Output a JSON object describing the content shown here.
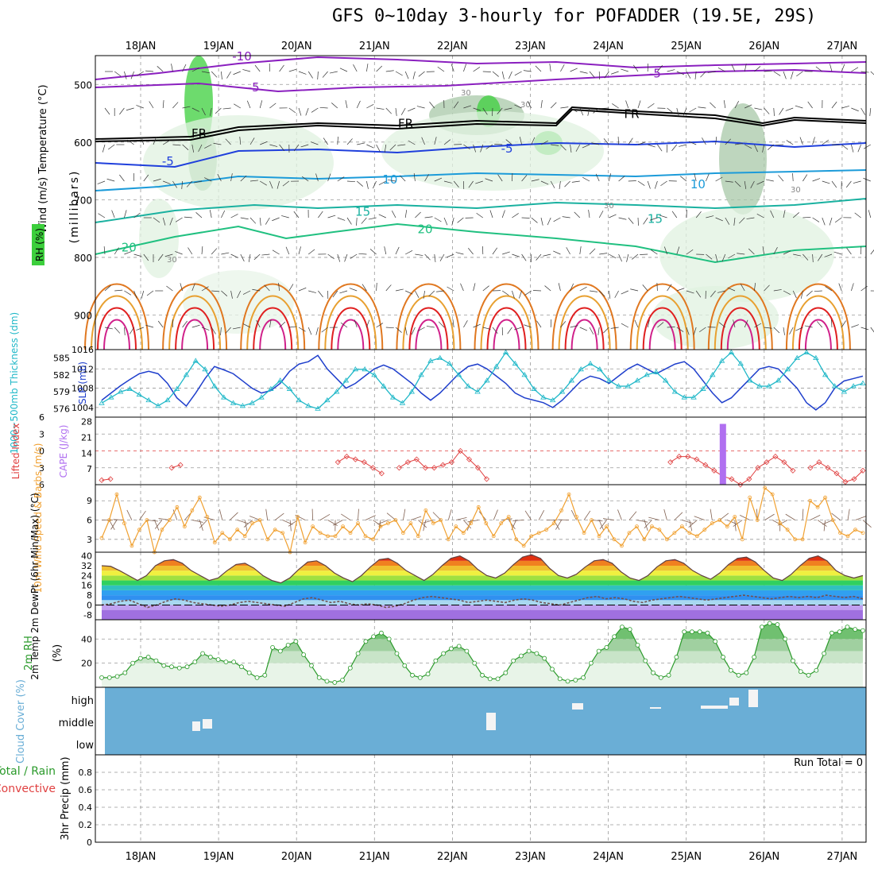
{
  "title": "GFS 0~10day 3-hourly for POFADDER (19.5E, 29S)",
  "date_labels": [
    "18JAN",
    "19JAN",
    "20JAN",
    "21JAN",
    "22JAN",
    "23JAN",
    "24JAN",
    "25JAN",
    "26JAN",
    "27JAN"
  ],
  "colors": {
    "purple": "#8a1fbf",
    "black": "#000000",
    "blue": "#1f3fdc",
    "lightblue": "#1c9bd9",
    "teal": "#1ab1a0",
    "green": "#20c080",
    "orange": "#e8a030",
    "dkorange": "#e07820",
    "red": "#e02020",
    "magenta": "#d0208a",
    "rhgreen": "#3ccf3c",
    "slp": "#1f3fcc",
    "thick": "#20b8c8",
    "li": "#e04040",
    "cape": "#b070f0",
    "wind": "#f0a030",
    "barb": "#806050",
    "cloud": "#6aaed6",
    "rh2m": "#2a9a2a"
  },
  "chart_data": [
    {
      "type": "contour",
      "panel": "upper-air",
      "ylabel": "(millibars)",
      "yticks": [
        500,
        600,
        700,
        800,
        900
      ],
      "ylim": [
        450,
        960
      ],
      "side_labels": {
        "wind": "Wind (m/s)",
        "temperature": "Temperature (°C)",
        "rh": "RH (%)"
      },
      "isotherm_labels": [
        {
          "text": "-10",
          "day": 1.3,
          "p": 458,
          "color": "purple"
        },
        {
          "text": "-5",
          "day": 1.45,
          "p": 512,
          "color": "purple"
        },
        {
          "text": "-5",
          "day": 6.6,
          "p": 488,
          "color": "purple"
        },
        {
          "text": "FR",
          "day": 0.75,
          "p": 592,
          "color": "black"
        },
        {
          "text": "FR",
          "day": 3.4,
          "p": 575,
          "color": "black"
        },
        {
          "text": "FR",
          "day": 6.3,
          "p": 558,
          "color": "black"
        },
        {
          "text": "-5",
          "day": 0.35,
          "p": 640,
          "color": "blue"
        },
        {
          "text": "-5",
          "day": 4.7,
          "p": 618,
          "color": "blue"
        },
        {
          "text": "10",
          "day": 3.2,
          "p": 672,
          "color": "lightblue"
        },
        {
          "text": "10",
          "day": 7.15,
          "p": 680,
          "color": "lightblue"
        },
        {
          "text": "15",
          "day": 2.85,
          "p": 728,
          "color": "teal"
        },
        {
          "text": "15",
          "day": 6.6,
          "p": 740,
          "color": "teal"
        },
        {
          "text": "20",
          "day": -0.15,
          "p": 790,
          "color": "green"
        },
        {
          "text": "20",
          "day": 3.65,
          "p": 758,
          "color": "green"
        }
      ],
      "rh_labels": [
        "30",
        "30",
        "30",
        "30",
        "30"
      ]
    },
    {
      "type": "line",
      "panel": "slp-thickness",
      "ylabel_left": "1000~500mb Thickness (dm)",
      "ylabel_right": "SLP (mb)",
      "yticks_slp": [
        1004,
        1008,
        1012,
        1016
      ],
      "yticks_thk": [
        576,
        579,
        582,
        585
      ],
      "series": [
        {
          "name": "SLP (mb)",
          "values": [
            1005.5,
            1007,
            1008.5,
            1009.8,
            1011,
            1011.5,
            1011,
            1009,
            1006,
            1004.3,
            1007,
            1010,
            1012.5,
            1011.8,
            1011,
            1009.5,
            1008,
            1007,
            1007.5,
            1009,
            1011.5,
            1013,
            1013.5,
            1014.8,
            1012,
            1010,
            1008,
            1009,
            1010.5,
            1012,
            1012.8,
            1012,
            1010.5,
            1009,
            1007,
            1005.5,
            1007,
            1009,
            1011,
            1012.5,
            1013,
            1012,
            1010.5,
            1009,
            1007,
            1006,
            1005.5,
            1005,
            1004,
            1005.5,
            1007.5,
            1009.5,
            1010.5,
            1010,
            1009,
            1010.5,
            1012,
            1013,
            1012,
            1011,
            1012,
            1013,
            1013.5,
            1012,
            1009.5,
            1007,
            1005,
            1006,
            1008,
            1010,
            1012,
            1012.5,
            1012,
            1010,
            1008,
            1005,
            1003.5,
            1005,
            1008,
            1009.5,
            1010,
            1010.5
          ]
        },
        {
          "name": "Thickness (dm)",
          "values": [
            577,
            578,
            579,
            579.5,
            578.5,
            577.5,
            576.5,
            577.5,
            579.5,
            582,
            584.5,
            583,
            580,
            578,
            577,
            576.5,
            577,
            578,
            579.5,
            581,
            579.5,
            577.5,
            576.5,
            576,
            577.5,
            579,
            581,
            583,
            583,
            582,
            580,
            578,
            577,
            579,
            582,
            584.5,
            585,
            584,
            582,
            580,
            579,
            581,
            583.5,
            586,
            584,
            582,
            579.5,
            578,
            577.5,
            579,
            581,
            583,
            584,
            583,
            581,
            580,
            580,
            581,
            582,
            582.5,
            581,
            579,
            578,
            578,
            579.5,
            582,
            584.5,
            586,
            584,
            581,
            580,
            580,
            581,
            583,
            585,
            586,
            585,
            582,
            580,
            579,
            580,
            580.5
          ]
        }
      ]
    },
    {
      "type": "line-bar",
      "panel": "lifted-index-cape",
      "ylabel_left": "Lifted Index",
      "ylabel_right": "CAPE (J/kg)",
      "yticks_li": [
        -6,
        -3,
        0,
        3,
        6
      ],
      "yticks_cape": [
        7,
        14,
        21,
        28
      ],
      "li_values": [
        5.2,
        5,
        null,
        null,
        null,
        null,
        null,
        null,
        3,
        2.5,
        null,
        null,
        null,
        null,
        null,
        null,
        null,
        null,
        null,
        null,
        null,
        null,
        null,
        null,
        null,
        null,
        null,
        2,
        1,
        1.5,
        2,
        3,
        4,
        null,
        3,
        2,
        1.5,
        3,
        3,
        2.5,
        2,
        0,
        1.5,
        3,
        5,
        null,
        null,
        null,
        null,
        null,
        null,
        null,
        null,
        null,
        null,
        null,
        null,
        null,
        null,
        null,
        null,
        null,
        null,
        null,
        null,
        2,
        1,
        1,
        1.5,
        2.5,
        3.5,
        4.5,
        5,
        6,
        5,
        3,
        2,
        1,
        2,
        3.5,
        null,
        3,
        2,
        3,
        4,
        5.5,
        5,
        3.5
      ],
      "cape_bars": [
        {
          "index": 71,
          "value": 27
        }
      ]
    },
    {
      "type": "line",
      "panel": "10m-wind",
      "ylabel": "10m Wind Speed & Barbs (m/s)",
      "yticks": [
        3,
        6,
        9
      ],
      "values": [
        3.2,
        6,
        10,
        5.5,
        2,
        4.5,
        6,
        1,
        4.5,
        6,
        8,
        5,
        7.5,
        9.5,
        6.5,
        2.5,
        4,
        3,
        4.5,
        3.5,
        5.5,
        6,
        3,
        4.5,
        4,
        1,
        6.5,
        2.5,
        5,
        4,
        3.5,
        3.5,
        5,
        4,
        5.5,
        3.5,
        3,
        5,
        5.5,
        6,
        4,
        5.5,
        3.5,
        7.5,
        5.5,
        6,
        3,
        5,
        4,
        5.5,
        8,
        5.5,
        3.5,
        5.5,
        6.5,
        3,
        2,
        3.5,
        4,
        4.5,
        5.5,
        7.5,
        10,
        6.5,
        4,
        6,
        3.5,
        5,
        3,
        2,
        4,
        5,
        3,
        5,
        4.5,
        3,
        4,
        5,
        4,
        3.5,
        4.5,
        5.5,
        6,
        5,
        6.5,
        3,
        9.5,
        6,
        11,
        10,
        5.5,
        4.5,
        3,
        3,
        9,
        8,
        9.5,
        6,
        4,
        3.5,
        4.5,
        4
      ]
    },
    {
      "type": "area",
      "panel": "2m-temp",
      "ylabel": "2m Temp 2m DewPt (6hr Min/Max) (°C)",
      "yticks": [
        -8,
        0,
        8,
        16,
        24,
        32,
        40
      ],
      "temp": [
        32,
        31.5,
        28,
        24,
        20,
        24,
        32,
        36,
        37,
        34,
        28,
        24,
        20,
        22,
        28,
        33,
        34,
        30,
        24,
        20,
        18,
        22,
        29,
        35,
        36,
        32,
        26,
        22,
        19,
        24,
        31,
        37,
        38,
        34,
        28,
        24,
        20,
        25,
        32,
        38,
        40,
        36,
        29,
        24,
        22,
        26,
        33,
        39,
        41,
        38,
        30,
        24,
        22,
        25,
        31,
        36,
        37,
        34,
        27,
        22,
        20,
        24,
        31,
        36,
        37,
        34,
        28,
        24,
        21,
        26,
        33,
        38,
        39,
        35,
        28,
        22,
        20,
        25,
        32,
        38,
        40,
        36,
        28,
        24,
        22,
        24
      ],
      "dewpt": [
        0,
        1,
        3,
        4,
        1,
        -2,
        0,
        3,
        5,
        4,
        2,
        1,
        0,
        -1,
        0,
        2,
        3,
        2,
        1,
        0,
        -1,
        2,
        5,
        6,
        4,
        2,
        3,
        1,
        0,
        1,
        0,
        -2,
        -1,
        1,
        4,
        6,
        7,
        6,
        5,
        4,
        2,
        3,
        4,
        3,
        2,
        4,
        5,
        4,
        2,
        1,
        0,
        2,
        4,
        6,
        7,
        5,
        6,
        5,
        3,
        2,
        4,
        5,
        6,
        7,
        6,
        5,
        4,
        5,
        6,
        7,
        8,
        7,
        6,
        5,
        6,
        7,
        6,
        7,
        6,
        8,
        7,
        6,
        7,
        5
      ]
    },
    {
      "type": "area",
      "panel": "2m-rh",
      "ylabel": "2m RH (%)",
      "yticks": [
        20,
        40
      ],
      "values": [
        8,
        8,
        9,
        12,
        20,
        24,
        25,
        22,
        18,
        17,
        16,
        17,
        21,
        28,
        25,
        23,
        21,
        21,
        17,
        12,
        8,
        10,
        33,
        30,
        35,
        38,
        27,
        18,
        8,
        5,
        4,
        6,
        16,
        28,
        38,
        42,
        45,
        40,
        28,
        18,
        10,
        8,
        11,
        22,
        28,
        32,
        34,
        30,
        20,
        10,
        7,
        7,
        12,
        22,
        26,
        30,
        28,
        24,
        15,
        7,
        5,
        6,
        8,
        20,
        30,
        33,
        42,
        50,
        48,
        35,
        22,
        12,
        8,
        10,
        25,
        46,
        46,
        46,
        45,
        38,
        25,
        14,
        10,
        12,
        25,
        50,
        53,
        52,
        40,
        22,
        13,
        10,
        14,
        28,
        45,
        46,
        50,
        48,
        47
      ]
    },
    {
      "type": "heatmap",
      "panel": "cloud-cover",
      "ylabel": "Cloud Cover (%)",
      "levels": [
        "high",
        "middle",
        "low"
      ]
    },
    {
      "type": "bar",
      "panel": "precip",
      "ylabel": "3hr Precip (mm)",
      "side_labels": [
        "Total / Rain",
        "Convective"
      ],
      "yticks": [
        0,
        0.2,
        0.4,
        0.6,
        0.8
      ],
      "ylim": [
        0,
        1
      ],
      "run_total": "Run Total = 0",
      "values": []
    }
  ]
}
